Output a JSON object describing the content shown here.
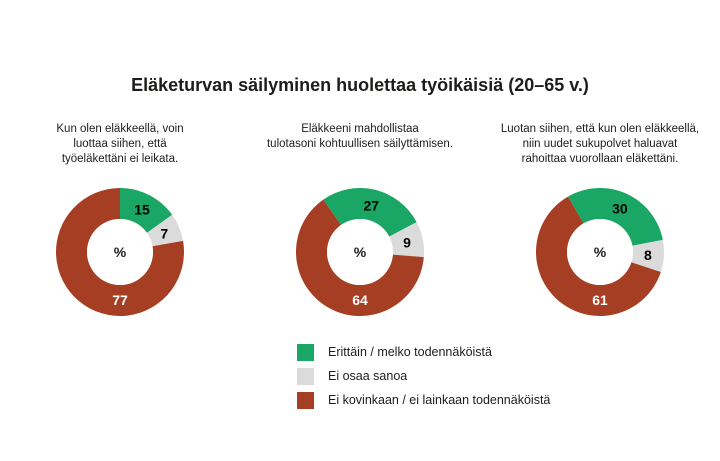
{
  "title": "Eläketurvan säilyminen huolettaa työikäisiä (20–65 v.)",
  "colors": {
    "background": "#ffffff",
    "text": "#1d1d1b",
    "green": "#1aa664",
    "gray": "#dbdbdb",
    "brown": "#a63e23"
  },
  "legend": [
    {
      "label": "Erittäin / melko todennäköistä",
      "color": "#1aa664"
    },
    {
      "label": "Ei osaa sanoa",
      "color": "#dbdbdb"
    },
    {
      "label": "Ei kovinkaan / ei lainkaan todennäköistä",
      "color": "#a63e23"
    }
  ],
  "chart_data": {
    "type": "pie",
    "subtype": "donut",
    "unit": "%",
    "center_label": "%",
    "legend_position": "bottom",
    "categories": [
      "Erittäin / melko todennäköistä",
      "Ei osaa sanoa",
      "Ei kovinkaan / ei lainkaan todennäköistä"
    ],
    "colors": [
      "#1aa664",
      "#dbdbdb",
      "#a63e23"
    ],
    "value_label_colors": [
      "#000000",
      "#000000",
      "#ffffff"
    ],
    "charts": [
      {
        "question": "Kun olen eläkkeellä, voin\nluottaa siihen, että\ntyöeläkettäni ei leikata.",
        "values": [
          15,
          7,
          77
        ],
        "start_angle_deg": 0
      },
      {
        "question": "Eläkkeeni mahdollistaa\ntulotasoni kohtuullisen säilyttämisen.",
        "values": [
          27,
          9,
          64
        ],
        "start_angle_deg": -35
      },
      {
        "question": "Luotan siihen, että kun olen eläkkeellä,\nniin uudet sukupolvet haluavat\nrahoittaa vuorollaan eläkettäni.",
        "values": [
          30,
          8,
          61
        ],
        "start_angle_deg": -30
      }
    ]
  }
}
